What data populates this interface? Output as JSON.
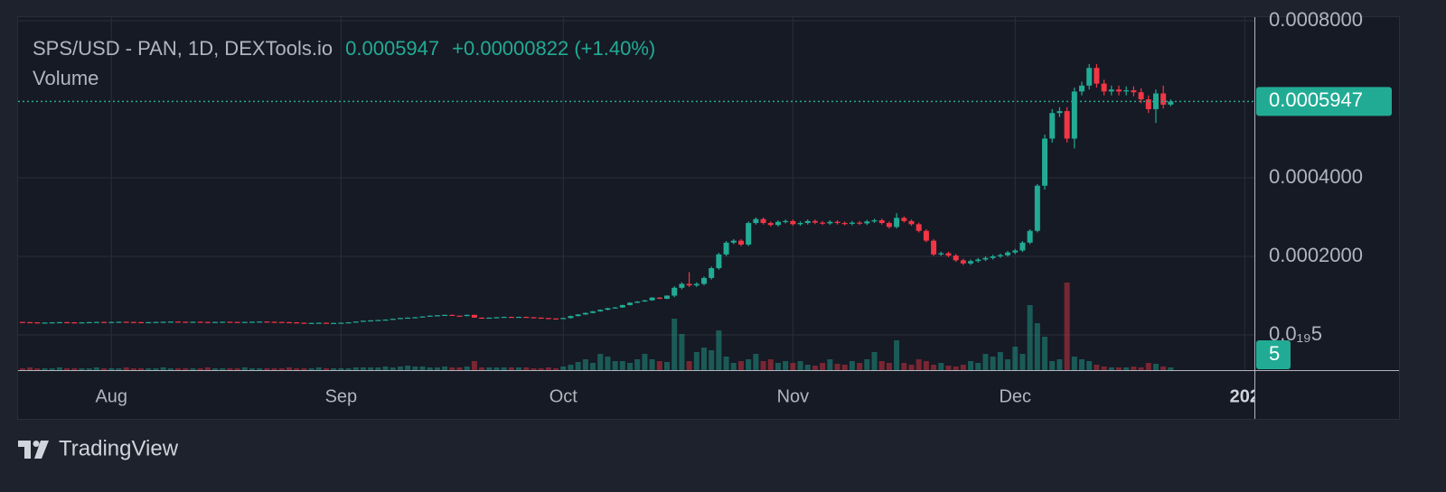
{
  "chart_data": {
    "type": "candlestick",
    "title": "SPS/USD - PAN, 1D, DEXTools.io",
    "change": "+0.00000822 (+1.40%)",
    "volume_title": "Volume",
    "volume_label": "5",
    "brand": "TradingView",
    "up_color": "#22ab94",
    "down_color": "#f23645",
    "xlim": [
      0.4,
      167.3
    ],
    "xticks": [
      {
        "value": 13,
        "label": "Aug"
      },
      {
        "value": 44,
        "label": "Sep"
      },
      {
        "value": 74,
        "label": "Oct"
      },
      {
        "value": 105,
        "label": "Nov"
      },
      {
        "value": 135,
        "label": "Dec"
      },
      {
        "value": 166,
        "label": "202"
      }
    ],
    "ylim": [
      -8.97e-05,
      0.000807
    ],
    "yticks": [
      {
        "value": 0.0008,
        "label": "0.0008000"
      },
      {
        "value": 0.0004,
        "label": "0.0004000"
      },
      {
        "value": 0.0002,
        "label": "0.0002000"
      },
      {
        "value": 5e-20,
        "label": "0.0₁₉5"
      }
    ],
    "vlim": [
      0,
      100
    ],
    "grid": true,
    "open": [
      3.32e-05,
      3.3e-05,
      3.25e-05,
      3.2e-05,
      3.1e-05,
      3.15e-05,
      3.2e-05,
      3.25e-05,
      3.2e-05,
      3.15e-05,
      3.2e-05,
      3.25e-05,
      3.3e-05,
      3.25e-05,
      3.3e-05,
      3.35e-05,
      3.3e-05,
      3.25e-05,
      3.2e-05,
      3.25e-05,
      3.3e-05,
      3.35e-05,
      3.4e-05,
      3.35e-05,
      3.3e-05,
      3.35e-05,
      3.3e-05,
      3.25e-05,
      3.3e-05,
      3.35e-05,
      3.3e-05,
      3.25e-05,
      3.3e-05,
      3.35e-05,
      3.4e-05,
      3.35e-05,
      3.3e-05,
      3.25e-05,
      3.2e-05,
      3.1e-05,
      3e-05,
      3.05e-05,
      3.1e-05,
      3e-05,
      3.05e-05,
      3.1e-05,
      3.2e-05,
      3.4e-05,
      3.6e-05,
      3.7e-05,
      3.8e-05,
      3.9e-05,
      4.1e-05,
      4.3e-05,
      4.4e-05,
      4.5e-05,
      4.7e-05,
      4.9e-05,
      5e-05,
      5.1e-05,
      4.9e-05,
      4.8e-05,
      5.1e-05,
      4.4e-05,
      4.3e-05,
      4.4e-05,
      4.5e-05,
      4.6e-05,
      4.5e-05,
      4.6e-05,
      4.5e-05,
      4.4e-05,
      4.3e-05,
      4.2e-05,
      4.1e-05,
      4.3e-05,
      4.8e-05,
      5.2e-05,
      5.6e-05,
      6e-05,
      6.4e-05,
      6.8e-05,
      7e-05,
      7.6e-05,
      8.2e-05,
      8.5e-05,
      8.8e-05,
      9.5e-05,
      9.2e-05,
      0.0001,
      0.00012,
      0.00013,
      0.000126,
      0.00013,
      0.000145,
      0.00017,
      0.000205,
      0.000235,
      0.00024,
      0.00023,
      0.000285,
      0.000295,
      0.000285,
      0.00028,
      0.000288,
      0.00029,
      0.000282,
      0.000285,
      0.00029,
      0.000286,
      0.000284,
      0.000288,
      0.000285,
      0.000283,
      0.000286,
      0.000284,
      0.000289,
      0.000292,
      0.000285,
      0.000275,
      0.000298,
      0.00029,
      0.000282,
      0.000265,
      0.00024,
      0.000205,
      0.000208,
      0.000202,
      0.00019,
      0.000182,
      0.000188,
      0.000192,
      0.000196,
      0.0002,
      0.000203,
      0.00021,
      0.000215,
      0.000235,
      0.000265,
      0.00038,
      0.0005,
      0.000565,
      0.00057,
      0.0005,
      0.00062,
      0.000635,
      0.00068,
      0.00064,
      0.00062,
      0.000625,
      0.00062,
      0.000623,
      0.000618,
      0.0006,
      0.000575,
      0.000615,
      0.0005865
    ],
    "high": [
      3.37e-05,
      3.35e-05,
      3.3e-05,
      3.25e-05,
      3.2e-05,
      3.25e-05,
      3.3e-05,
      3.3e-05,
      3.25e-05,
      3.25e-05,
      3.3e-05,
      3.35e-05,
      3.35e-05,
      3.35e-05,
      3.4e-05,
      3.4e-05,
      3.35e-05,
      3.3e-05,
      3.3e-05,
      3.35e-05,
      3.4e-05,
      3.45e-05,
      3.45e-05,
      3.4e-05,
      3.4e-05,
      3.4e-05,
      3.35e-05,
      3.35e-05,
      3.4e-05,
      3.4e-05,
      3.35e-05,
      3.35e-05,
      3.4e-05,
      3.45e-05,
      3.45e-05,
      3.4e-05,
      3.35e-05,
      3.3e-05,
      3.25e-05,
      3.15e-05,
      3.1e-05,
      3.15e-05,
      3.15e-05,
      3.1e-05,
      3.15e-05,
      3.25e-05,
      3.45e-05,
      3.65e-05,
      3.75e-05,
      3.85e-05,
      3.95e-05,
      4.15e-05,
      4.35e-05,
      4.45e-05,
      4.55e-05,
      4.75e-05,
      4.95e-05,
      5.05e-05,
      5.15e-05,
      5.15e-05,
      4.95e-05,
      5.15e-05,
      5.15e-05,
      4.45e-05,
      4.45e-05,
      4.55e-05,
      4.65e-05,
      4.65e-05,
      4.65e-05,
      4.65e-05,
      4.55e-05,
      4.45e-05,
      4.35e-05,
      4.25e-05,
      4.4e-05,
      4.9e-05,
      5.3e-05,
      5.7e-05,
      6.1e-05,
      6.5e-05,
      6.9e-05,
      7.1e-05,
      7.7e-05,
      8.3e-05,
      8.6e-05,
      8.9e-05,
      9.6e-05,
      9.6e-05,
      0.000101,
      0.000124,
      0.000134,
      0.00016,
      0.000134,
      0.000149,
      0.000174,
      0.000209,
      0.000239,
      0.000244,
      0.000244,
      0.000289,
      0.000299,
      0.000299,
      0.000289,
      0.000292,
      0.000294,
      0.000294,
      0.000289,
      0.000294,
      0.000294,
      0.00029,
      0.000292,
      0.000292,
      0.000289,
      0.00029,
      0.00029,
      0.000293,
      0.000296,
      0.000296,
      0.000289,
      0.00031,
      0.000302,
      0.000294,
      0.000286,
      0.000269,
      0.000244,
      0.000212,
      0.000212,
      0.000206,
      0.000194,
      0.000192,
      0.000196,
      0.0002,
      0.000204,
      0.000207,
      0.000214,
      0.000219,
      0.000239,
      0.000269,
      0.000384,
      0.00051,
      0.000575,
      0.00058,
      0.00058,
      0.00063,
      0.000645,
      0.00069,
      0.00069,
      0.00065,
      0.000635,
      0.000635,
      0.000633,
      0.000633,
      0.000628,
      0.00061,
      0.000625,
      0.000635,
      0.0006
    ],
    "low": [
      3.25e-05,
      3.2e-05,
      3.15e-05,
      3.05e-05,
      3.05e-05,
      3.1e-05,
      3.15e-05,
      3.15e-05,
      3.1e-05,
      3.1e-05,
      3.15e-05,
      3.2e-05,
      3.2e-05,
      3.2e-05,
      3.25e-05,
      3.25e-05,
      3.2e-05,
      3.15e-05,
      3.15e-05,
      3.2e-05,
      3.25e-05,
      3.3e-05,
      3.3e-05,
      3.25e-05,
      3.25e-05,
      3.25e-05,
      3.2e-05,
      3.2e-05,
      3.25e-05,
      3.25e-05,
      3.2e-05,
      3.2e-05,
      3.25e-05,
      3.3e-05,
      3.3e-05,
      3.25e-05,
      3.2e-05,
      3.15e-05,
      3.05e-05,
      2.95e-05,
      2.95e-05,
      3e-05,
      2.95e-05,
      2.95e-05,
      3e-05,
      3.05e-05,
      3.15e-05,
      3.35e-05,
      3.55e-05,
      3.65e-05,
      3.75e-05,
      3.85e-05,
      4.05e-05,
      4.25e-05,
      4.35e-05,
      4.45e-05,
      4.65e-05,
      4.85e-05,
      4.95e-05,
      4.85e-05,
      4.75e-05,
      4.75e-05,
      4.35e-05,
      4.25e-05,
      4.25e-05,
      4.35e-05,
      4.45e-05,
      4.45e-05,
      4.45e-05,
      4.45e-05,
      4.35e-05,
      4.25e-05,
      4.15e-05,
      4.05e-05,
      4e-05,
      4.2e-05,
      4.7e-05,
      5.1e-05,
      5.5e-05,
      5.9e-05,
      6.3e-05,
      6.7e-05,
      6.9e-05,
      7.5e-05,
      8.1e-05,
      8.4e-05,
      8.7e-05,
      9.1e-05,
      9.1e-05,
      9.6e-05,
      0.000116,
      0.000122,
      0.000122,
      0.000126,
      0.000141,
      0.000166,
      0.000201,
      0.000231,
      0.000226,
      0.000226,
      0.000281,
      0.000281,
      0.000276,
      0.000276,
      0.000284,
      0.000278,
      0.000278,
      0.000281,
      0.000282,
      0.00028,
      0.00028,
      0.000281,
      0.000279,
      0.000279,
      0.00028,
      0.00028,
      0.000285,
      0.000281,
      0.000271,
      0.000271,
      0.000286,
      0.000278,
      0.000261,
      0.000236,
      0.000201,
      0.000201,
      0.000198,
      0.000186,
      0.000178,
      0.000178,
      0.000184,
      0.000188,
      0.000192,
      0.000196,
      0.000199,
      0.000206,
      0.000211,
      0.000231,
      0.000261,
      0.00037,
      0.00049,
      0.000555,
      0.00049,
      0.000475,
      0.00061,
      0.000625,
      0.00063,
      0.00061,
      0.00061,
      0.00061,
      0.00061,
      0.000608,
      0.00059,
      0.000565,
      0.00054,
      0.0005765,
      0.000582
    ],
    "close": [
      3.3e-05,
      3.25e-05,
      3.2e-05,
      3.1e-05,
      3.15e-05,
      3.2e-05,
      3.25e-05,
      3.2e-05,
      3.15e-05,
      3.2e-05,
      3.25e-05,
      3.3e-05,
      3.25e-05,
      3.3e-05,
      3.35e-05,
      3.3e-05,
      3.25e-05,
      3.2e-05,
      3.25e-05,
      3.3e-05,
      3.35e-05,
      3.4e-05,
      3.35e-05,
      3.3e-05,
      3.35e-05,
      3.3e-05,
      3.25e-05,
      3.3e-05,
      3.35e-05,
      3.3e-05,
      3.25e-05,
      3.3e-05,
      3.35e-05,
      3.4e-05,
      3.35e-05,
      3.3e-05,
      3.25e-05,
      3.2e-05,
      3.1e-05,
      3e-05,
      3.05e-05,
      3.1e-05,
      3e-05,
      3.05e-05,
      3.1e-05,
      3.2e-05,
      3.4e-05,
      3.6e-05,
      3.7e-05,
      3.8e-05,
      3.9e-05,
      4.1e-05,
      4.3e-05,
      4.4e-05,
      4.5e-05,
      4.7e-05,
      4.9e-05,
      5e-05,
      5.1e-05,
      4.9e-05,
      4.8e-05,
      5.1e-05,
      4.4e-05,
      4.3e-05,
      4.4e-05,
      4.5e-05,
      4.6e-05,
      4.5e-05,
      4.6e-05,
      4.5e-05,
      4.4e-05,
      4.3e-05,
      4.2e-05,
      4.1e-05,
      4.3e-05,
      4.8e-05,
      5.2e-05,
      5.6e-05,
      6e-05,
      6.4e-05,
      6.8e-05,
      7e-05,
      7.6e-05,
      8.2e-05,
      8.5e-05,
      8.8e-05,
      9.5e-05,
      9.2e-05,
      0.0001,
      0.00012,
      0.00013,
      0.000126,
      0.00013,
      0.000145,
      0.00017,
      0.000205,
      0.000235,
      0.00024,
      0.00023,
      0.000285,
      0.000295,
      0.000285,
      0.00028,
      0.000288,
      0.00029,
      0.000282,
      0.000285,
      0.00029,
      0.000286,
      0.000284,
      0.000288,
      0.000285,
      0.000283,
      0.000286,
      0.000284,
      0.000289,
      0.000292,
      0.000285,
      0.000275,
      0.000298,
      0.00029,
      0.000282,
      0.000265,
      0.00024,
      0.000205,
      0.000208,
      0.000202,
      0.00019,
      0.000182,
      0.000188,
      0.000192,
      0.000196,
      0.0002,
      0.000203,
      0.00021,
      0.000215,
      0.000235,
      0.000265,
      0.00038,
      0.0005,
      0.000565,
      0.00057,
      0.0005,
      0.00062,
      0.000635,
      0.00068,
      0.00064,
      0.00062,
      0.000625,
      0.00062,
      0.000623,
      0.000618,
      0.0006,
      0.000575,
      0.000615,
      0.0005865,
      0.0005947
    ],
    "volume": [
      2,
      2,
      3,
      2,
      2,
      2,
      3,
      2,
      2,
      2,
      2,
      3,
      2,
      2,
      2,
      3,
      2,
      2,
      2,
      2,
      3,
      2,
      2,
      2,
      2,
      2,
      3,
      2,
      2,
      2,
      2,
      3,
      2,
      2,
      2,
      2,
      2,
      3,
      2,
      2,
      2,
      3,
      2,
      2,
      2,
      2,
      3,
      3,
      3,
      3,
      4,
      3,
      4,
      5,
      4,
      4,
      3,
      3,
      4,
      3,
      3,
      4,
      10,
      3,
      3,
      3,
      3,
      3,
      3,
      3,
      2,
      2,
      3,
      2,
      4,
      6,
      9,
      12,
      8,
      18,
      15,
      10,
      10,
      8,
      12,
      18,
      12,
      10,
      9,
      57,
      40,
      10,
      20,
      25,
      22,
      44,
      15,
      8,
      10,
      12,
      18,
      10,
      12,
      8,
      10,
      8,
      10,
      6,
      5,
      8,
      12,
      7,
      6,
      10,
      8,
      12,
      20,
      10,
      8,
      33,
      8,
      6,
      12,
      10,
      6,
      8,
      5,
      4,
      6,
      10,
      8,
      18,
      15,
      20,
      12,
      26,
      18,
      72,
      52,
      37,
      10,
      12,
      97,
      15,
      12,
      10,
      6,
      4,
      3,
      3,
      3,
      4,
      3,
      8,
      7,
      4,
      3
    ]
  }
}
